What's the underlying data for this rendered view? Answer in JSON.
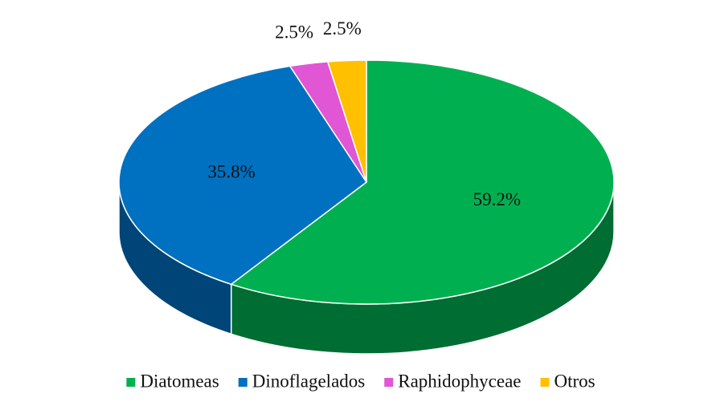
{
  "chart_data": {
    "type": "pie",
    "three_d": true,
    "categories": [
      "Diatomeas",
      "Dinoflagelados",
      "Raphidophyceae",
      "Otros"
    ],
    "values": [
      59.2,
      35.8,
      2.5,
      2.5
    ],
    "value_labels": [
      "59.2%",
      "35.8%",
      "2.5%",
      "2.5%"
    ],
    "colors": [
      "#00b050",
      "#0070c0",
      "#e056d4",
      "#ffc000"
    ],
    "legend": "bottom"
  }
}
